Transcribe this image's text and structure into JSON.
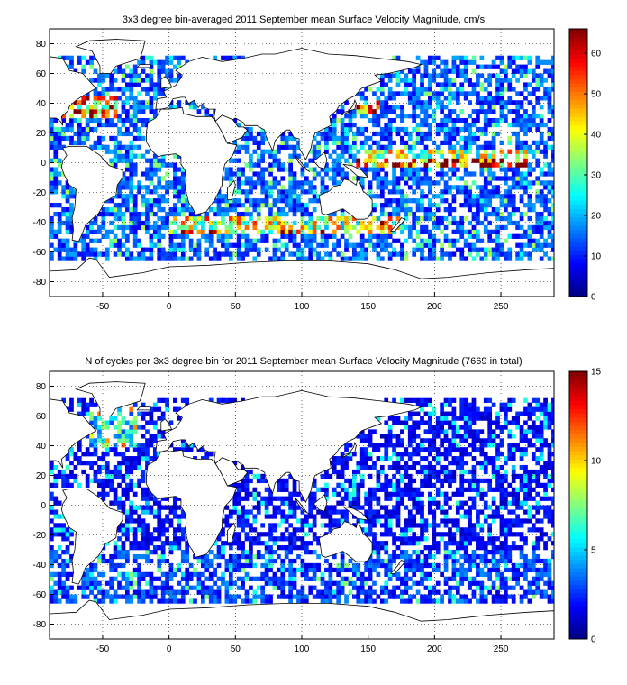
{
  "chart_data": [
    {
      "type": "heatmap",
      "title": "3x3 degree bin-averaged 2011 September mean Surface Velocity Magnitude, cm/s",
      "xlabel": "",
      "ylabel": "",
      "xlim": [
        -90,
        290
      ],
      "ylim": [
        -90,
        90
      ],
      "xticks": [
        -50,
        0,
        50,
        100,
        150,
        200,
        250
      ],
      "yticks": [
        80,
        60,
        40,
        20,
        0,
        -20,
        -40,
        -60,
        -80
      ],
      "grid": true,
      "bin_size_deg": 3,
      "colorbar": {
        "colormap": "jet",
        "range": [
          0,
          66
        ],
        "ticks": [
          0,
          10,
          20,
          30,
          40,
          50,
          60
        ]
      },
      "approx_field": {
        "base": 15,
        "bands": [
          {
            "lat": [
              -3,
              3
            ],
            "lon": [
              140,
              270
            ],
            "value": 60,
            "note": "equatorial Pacific currents"
          },
          {
            "lat": [
              3,
              10
            ],
            "lon": [
              140,
              280
            ],
            "value": 40
          },
          {
            "lat": [
              -48,
              -36
            ],
            "lon": [
              0,
              180
            ],
            "value": 42,
            "note": "Antarctic Circumpolar Current"
          },
          {
            "lat": [
              30,
              45
            ],
            "lon": [
              -80,
              -40
            ],
            "value": 55,
            "note": "Gulf Stream"
          },
          {
            "lat": [
              33,
              42
            ],
            "lon": [
              140,
              160
            ],
            "value": 55,
            "note": "Kuroshio"
          }
        ]
      }
    },
    {
      "type": "heatmap",
      "title": "N of cycles per 3x3 degree bin for 2011 September mean Surface Velocity Magnitude (7669 in total)",
      "xlabel": "",
      "ylabel": "",
      "xlim": [
        -90,
        290
      ],
      "ylim": [
        -90,
        90
      ],
      "xticks": [
        -50,
        0,
        50,
        100,
        150,
        200,
        250
      ],
      "yticks": [
        80,
        60,
        40,
        20,
        0,
        -20,
        -40,
        -60,
        -80
      ],
      "grid": true,
      "bin_size_deg": 3,
      "total_cycles": 7669,
      "colorbar": {
        "colormap": "jet",
        "range": [
          0,
          15
        ],
        "ticks": [
          0,
          5,
          10,
          15
        ]
      },
      "approx_field": {
        "base": 2,
        "bands": [
          {
            "lat": [
              40,
              65
            ],
            "lon": [
              -60,
              -20
            ],
            "value": 6,
            "note": "North Atlantic"
          },
          {
            "lat": [
              -70,
              -30
            ],
            "lon": [
              -90,
              290
            ],
            "value": 3
          }
        ]
      }
    }
  ]
}
